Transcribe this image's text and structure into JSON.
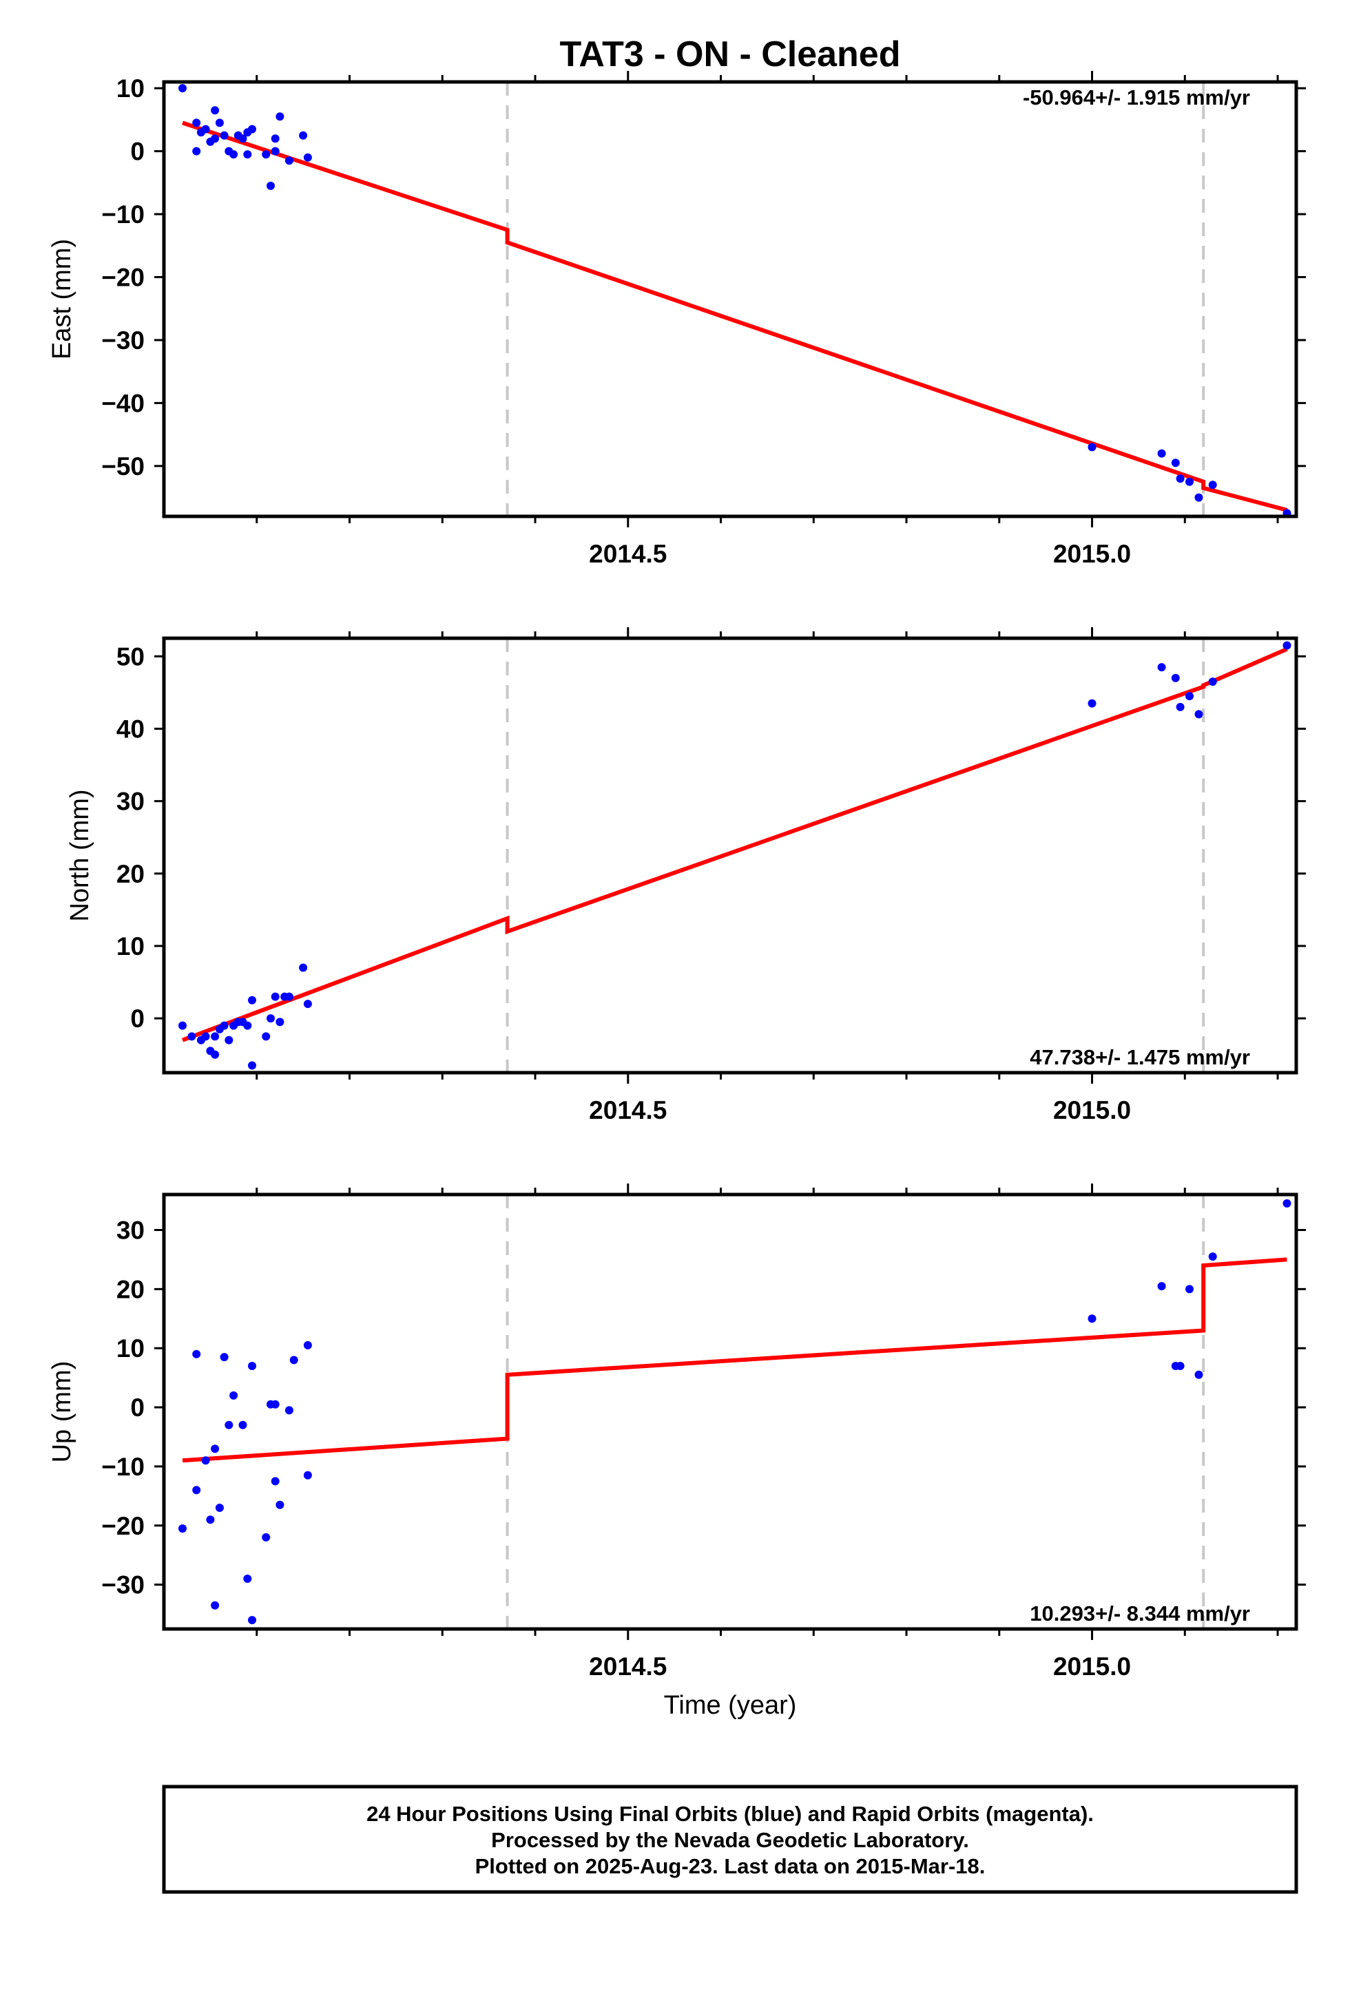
{
  "title": "TAT3  - ON - Cleaned",
  "xlabel": "Time (year)",
  "footer": [
    "24 Hour Positions Using Final Orbits (blue) and Rapid Orbits (magenta).",
    "Processed by the Nevada Geodetic Laboratory.",
    "Plotted on 2025-Aug-23. Last data on 2015-Mar-18."
  ],
  "colors": {
    "points": "#0000ff",
    "model": "#ff0000",
    "steps": "#c8c8c8",
    "frame": "#000000"
  },
  "chart_data": [
    {
      "type": "scatter",
      "ylabel": "East (mm)",
      "rate_label": "-50.964+/- 1.915 mm/yr",
      "rate_position": "top-right",
      "xlim": [
        2014.0,
        2015.22
      ],
      "ylim": [
        -58,
        11
      ],
      "xticks": [
        2014.5,
        2015.0
      ],
      "xticklabels": [
        "2014.5",
        "2015.0"
      ],
      "yticks": [
        10,
        0,
        -10,
        -20,
        -30,
        -40,
        -50
      ],
      "yticklabels": [
        "10",
        "0",
        "−10",
        "−20",
        "−30",
        "−40",
        "−50"
      ],
      "steps": [
        2014.37,
        2015.12
      ],
      "points": [
        [
          2014.02,
          10
        ],
        [
          2014.035,
          4.5
        ],
        [
          2014.035,
          0
        ],
        [
          2014.04,
          3
        ],
        [
          2014.045,
          3.5
        ],
        [
          2014.05,
          1.5
        ],
        [
          2014.055,
          6.5
        ],
        [
          2014.055,
          2
        ],
        [
          2014.06,
          4.5
        ],
        [
          2014.065,
          2.5
        ],
        [
          2014.07,
          0
        ],
        [
          2014.075,
          -0.5
        ],
        [
          2014.08,
          2.5
        ],
        [
          2014.085,
          2
        ],
        [
          2014.09,
          3
        ],
        [
          2014.09,
          -0.5
        ],
        [
          2014.095,
          3.5
        ],
        [
          2014.11,
          -0.5
        ],
        [
          2014.115,
          -5.5
        ],
        [
          2014.12,
          0
        ],
        [
          2014.12,
          2
        ],
        [
          2014.125,
          5.5
        ],
        [
          2014.135,
          -1.5
        ],
        [
          2014.15,
          2.5
        ],
        [
          2014.155,
          -1
        ],
        [
          2015.0,
          -47
        ],
        [
          2015.075,
          -48
        ],
        [
          2015.09,
          -49.5
        ],
        [
          2015.095,
          -52
        ],
        [
          2015.105,
          -52.5
        ],
        [
          2015.115,
          -55
        ],
        [
          2015.13,
          -53
        ],
        [
          2015.21,
          -57.5
        ]
      ],
      "model": [
        [
          2014.02,
          4.5
        ],
        [
          2014.37,
          -12.5
        ],
        [
          2014.37,
          -14.5
        ],
        [
          2015.12,
          -52.5
        ],
        [
          2015.12,
          -53.5
        ],
        [
          2015.21,
          -57
        ]
      ]
    },
    {
      "type": "scatter",
      "ylabel": "North (mm)",
      "rate_label": "47.738+/- 1.475 mm/yr",
      "rate_position": "bottom-right",
      "xlim": [
        2014.0,
        2015.22
      ],
      "ylim": [
        -7.5,
        52.5
      ],
      "xticks": [
        2014.5,
        2015.0
      ],
      "xticklabels": [
        "2014.5",
        "2015.0"
      ],
      "yticks": [
        50,
        40,
        30,
        20,
        10,
        0
      ],
      "yticklabels": [
        "50",
        "40",
        "30",
        "20",
        "10",
        "0"
      ],
      "steps": [
        2014.37,
        2015.12
      ],
      "points": [
        [
          2014.02,
          -1
        ],
        [
          2014.03,
          -2.5
        ],
        [
          2014.04,
          -3
        ],
        [
          2014.045,
          -2.5
        ],
        [
          2014.05,
          -4.5
        ],
        [
          2014.055,
          -2.5
        ],
        [
          2014.055,
          -5
        ],
        [
          2014.06,
          -1.5
        ],
        [
          2014.065,
          -1
        ],
        [
          2014.07,
          -3
        ],
        [
          2014.075,
          -1
        ],
        [
          2014.08,
          -0.5
        ],
        [
          2014.085,
          -0.5
        ],
        [
          2014.09,
          -1
        ],
        [
          2014.095,
          2.5
        ],
        [
          2014.095,
          -6.5
        ],
        [
          2014.11,
          -2.5
        ],
        [
          2014.115,
          0
        ],
        [
          2014.12,
          3
        ],
        [
          2014.125,
          -0.5
        ],
        [
          2014.13,
          3
        ],
        [
          2014.135,
          3
        ],
        [
          2014.15,
          7
        ],
        [
          2014.155,
          2
        ],
        [
          2015.0,
          43.5
        ],
        [
          2015.075,
          48.5
        ],
        [
          2015.09,
          47
        ],
        [
          2015.095,
          43
        ],
        [
          2015.105,
          44.5
        ],
        [
          2015.115,
          42
        ],
        [
          2015.13,
          46.5
        ],
        [
          2015.21,
          51.5
        ]
      ],
      "model": [
        [
          2014.02,
          -3
        ],
        [
          2014.37,
          13.8
        ],
        [
          2014.37,
          12
        ],
        [
          2015.12,
          45.8
        ],
        [
          2015.12,
          46
        ],
        [
          2015.21,
          51
        ]
      ]
    },
    {
      "type": "scatter",
      "ylabel": "Up (mm)",
      "rate_label": "10.293+/- 8.344 mm/yr",
      "rate_position": "bottom-right",
      "xlim": [
        2014.0,
        2015.22
      ],
      "ylim": [
        -37.5,
        36
      ],
      "xticks": [
        2014.5,
        2015.0
      ],
      "xticklabels": [
        "2014.5",
        "2015.0"
      ],
      "yticks": [
        30,
        20,
        10,
        0,
        -10,
        -20,
        -30
      ],
      "yticklabels": [
        "30",
        "20",
        "10",
        "0",
        "−10",
        "−20",
        "−30"
      ],
      "steps": [
        2014.37,
        2015.12
      ],
      "points": [
        [
          2014.02,
          -20.5
        ],
        [
          2014.035,
          9
        ],
        [
          2014.035,
          -14
        ],
        [
          2014.045,
          -9
        ],
        [
          2014.05,
          -19
        ],
        [
          2014.055,
          -7
        ],
        [
          2014.055,
          -33.5
        ],
        [
          2014.06,
          -17
        ],
        [
          2014.065,
          8.5
        ],
        [
          2014.07,
          -3
        ],
        [
          2014.075,
          2
        ],
        [
          2014.085,
          -3
        ],
        [
          2014.09,
          -29
        ],
        [
          2014.095,
          7
        ],
        [
          2014.095,
          -36
        ],
        [
          2014.11,
          -22
        ],
        [
          2014.115,
          0.5
        ],
        [
          2014.12,
          0.5
        ],
        [
          2014.12,
          -12.5
        ],
        [
          2014.125,
          -16.5
        ],
        [
          2014.135,
          -0.5
        ],
        [
          2014.14,
          8
        ],
        [
          2014.155,
          10.5
        ],
        [
          2014.155,
          -11.5
        ],
        [
          2015.0,
          15
        ],
        [
          2015.075,
          20.5
        ],
        [
          2015.09,
          7
        ],
        [
          2015.095,
          7
        ],
        [
          2015.105,
          20
        ],
        [
          2015.115,
          5.5
        ],
        [
          2015.13,
          25.5
        ],
        [
          2015.21,
          34.5
        ]
      ],
      "model": [
        [
          2014.02,
          -9
        ],
        [
          2014.37,
          -5.3
        ],
        [
          2014.37,
          5.5
        ],
        [
          2015.12,
          13
        ],
        [
          2015.12,
          24
        ],
        [
          2015.21,
          25
        ]
      ]
    }
  ]
}
